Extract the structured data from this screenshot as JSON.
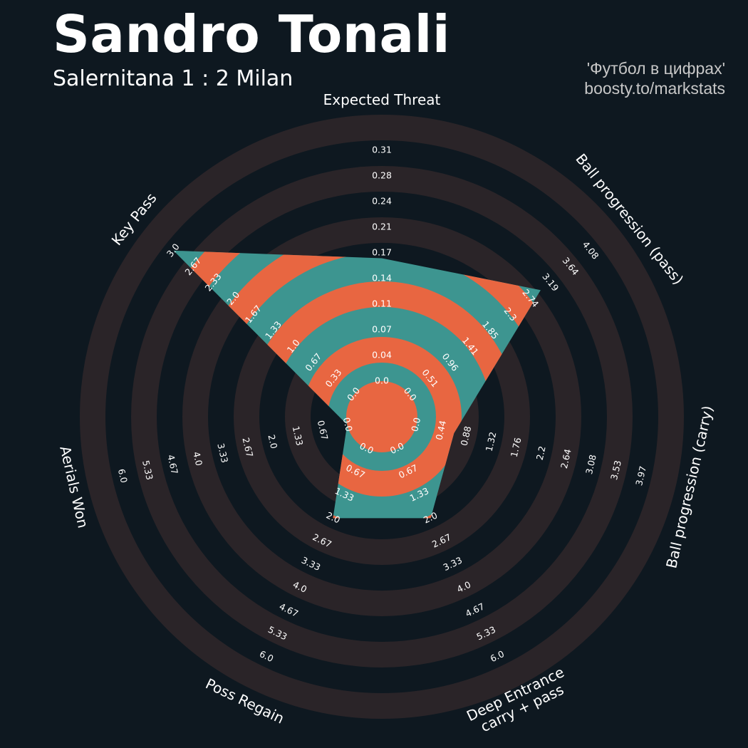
{
  "header": {
    "title": "Sandro Tonali",
    "subtitle": "Salernitana 1 : 2 Milan",
    "credit_line1": "'Футбол в цифрах'",
    "credit_line2": "boosty.to/markstats"
  },
  "colors": {
    "background": "#0e1820",
    "rings": "#2a2428",
    "shape_teal": "#3d9590",
    "shape_orange": "#e86641"
  },
  "chart_data": {
    "type": "radar",
    "axes": [
      {
        "name": "Expected Threat",
        "value": 0.165,
        "ticks": [
          "0.0",
          "0.04",
          "0.07",
          "0.11",
          "0.14",
          "0.17",
          "0.21",
          "0.24",
          "0.28",
          "0.31"
        ]
      },
      {
        "name": "Ball progression (pass)",
        "value": 2.96,
        "ticks": [
          "0.0",
          "0.51",
          "0.96",
          "1.41",
          "1.85",
          "2.3",
          "2.74",
          "3.19",
          "3.64",
          "4.08"
        ]
      },
      {
        "name": "Ball progression (carry)",
        "value": 0.66,
        "ticks": [
          "0.0",
          "0.44",
          "0.88",
          "1.32",
          "1.76",
          "2.2",
          "2.64",
          "3.08",
          "3.53",
          "3.97"
        ]
      },
      {
        "name": "Deep Entrance\ncarry + pass",
        "value": 2.0,
        "ticks": [
          "0.0",
          "0.67",
          "1.33",
          "2.0",
          "2.67",
          "3.33",
          "4.0",
          "4.67",
          "5.33",
          "6.0"
        ]
      },
      {
        "name": "Poss Regain",
        "value": 2.0,
        "ticks": [
          "0.0",
          "0.67",
          "1.33",
          "2.0",
          "2.67",
          "3.33",
          "4.0",
          "4.67",
          "5.33",
          "6.0"
        ]
      },
      {
        "name": "Aerials Won",
        "value": 0.0,
        "ticks": [
          "0.0",
          "0.67",
          "1.33",
          "2.0",
          "2.67",
          "3.33",
          "4.0",
          "4.67",
          "5.33",
          "6.0"
        ]
      },
      {
        "name": "Key Pass",
        "value": 3.0,
        "ticks": [
          "0.0",
          "0.33",
          "0.67",
          "1.0",
          "1.33",
          "1.67",
          "2.0",
          "2.33",
          "2.67",
          "3.0"
        ]
      }
    ],
    "axis_ranges": [
      [
        0,
        0.31
      ],
      [
        0,
        4.08
      ],
      [
        0,
        3.97
      ],
      [
        0,
        6.0
      ],
      [
        0,
        6.0
      ],
      [
        0,
        6.0
      ],
      [
        0,
        3.0
      ]
    ],
    "grid": true,
    "legend": "none"
  }
}
